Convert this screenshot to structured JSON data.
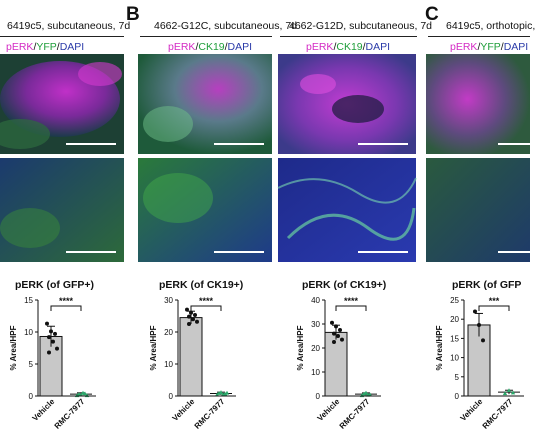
{
  "panels": {
    "B": "B",
    "C": "C"
  },
  "columns": [
    {
      "title": "6419c5, subcutaneous, 7d",
      "stain": {
        "a": "pERK",
        "b": "YFP",
        "c": "DAPI"
      },
      "chart_title": "pERK (of GFP+)"
    },
    {
      "title": "4662-G12C, subcutaneous, 7d",
      "stain": {
        "a": "pERK",
        "b": "CK19",
        "c": "DAPI"
      },
      "chart_title": "pERK (of CK19+)"
    },
    {
      "title": "4662-G12D, subcutaneous, 7d",
      "stain": {
        "a": "pERK",
        "b": "CK19",
        "c": "DAPI"
      },
      "chart_title": "pERK (of CK19+)"
    },
    {
      "title": "6419c5, orthotopic,",
      "stain": {
        "a": "pERK",
        "b": "YFP",
        "c": "DAPI"
      },
      "chart_title": "pERK (of GFP"
    }
  ],
  "stain_separator": "/",
  "colors": {
    "perk": "#d42bc4",
    "marker": "#1f9e3a",
    "dapi": "#2a3aa8",
    "vehicle_bar": "#c8c8c8",
    "rmc_points": "#2aa86a"
  },
  "chart_data": [
    {
      "type": "bar",
      "title": "pERK (of GFP+)",
      "ylabel": "% Area/HPF",
      "categories": [
        "Vehicle",
        "RMC-7977"
      ],
      "ylim": [
        0,
        15
      ],
      "yticks": [
        0,
        5,
        10,
        15
      ],
      "values": [
        9.3,
        0.3
      ],
      "errors": [
        1.6,
        0.2
      ],
      "significance": "****",
      "points": [
        [
          11.3,
          10.1,
          9.7,
          9.2,
          8.5,
          7.4,
          6.8
        ],
        [
          0.1,
          0.2,
          0.4,
          0.3,
          0.5,
          0.1
        ]
      ]
    },
    {
      "type": "bar",
      "title": "pERK (of CK19+)",
      "ylabel": "% Area/HPF",
      "categories": [
        "Vehicle",
        "RMC-7977"
      ],
      "ylim": [
        0,
        30
      ],
      "yticks": [
        0,
        10,
        20,
        30
      ],
      "values": [
        24.5,
        0.8
      ],
      "errors": [
        2.0,
        0.4
      ],
      "significance": "****",
      "points": [
        [
          27.0,
          26.0,
          25.3,
          24.8,
          24.0,
          23.2,
          22.5
        ],
        [
          0.4,
          1.2,
          0.7,
          0.9,
          0.5,
          1.0
        ]
      ]
    },
    {
      "type": "bar",
      "title": "pERK (of CK19+)",
      "ylabel": "% Area/HPF",
      "categories": [
        "Vehicle",
        "RMC-7977"
      ],
      "ylim": [
        0,
        40
      ],
      "yticks": [
        0,
        10,
        20,
        30,
        40
      ],
      "values": [
        26.5,
        0.8
      ],
      "errors": [
        3.0,
        0.5
      ],
      "significance": "****",
      "points": [
        [
          30.5,
          29.0,
          27.5,
          26.0,
          25.0,
          23.5,
          22.5
        ],
        [
          0.3,
          1.4,
          0.6,
          1.0,
          0.5
        ]
      ]
    },
    {
      "type": "bar",
      "title": "pERK (of GFP",
      "ylabel": "% Area/HPF",
      "categories": [
        "Vehicle",
        "RMC-7977"
      ],
      "ylim": [
        0,
        25
      ],
      "yticks": [
        0,
        5,
        10,
        15,
        20,
        25
      ],
      "values": [
        18.5,
        1.0
      ],
      "errors": [
        3.0,
        0.5
      ],
      "significance": "***",
      "points": [
        [
          22.0,
          18.5,
          14.5
        ],
        [
          0.7,
          1.5,
          0.9
        ]
      ]
    }
  ]
}
